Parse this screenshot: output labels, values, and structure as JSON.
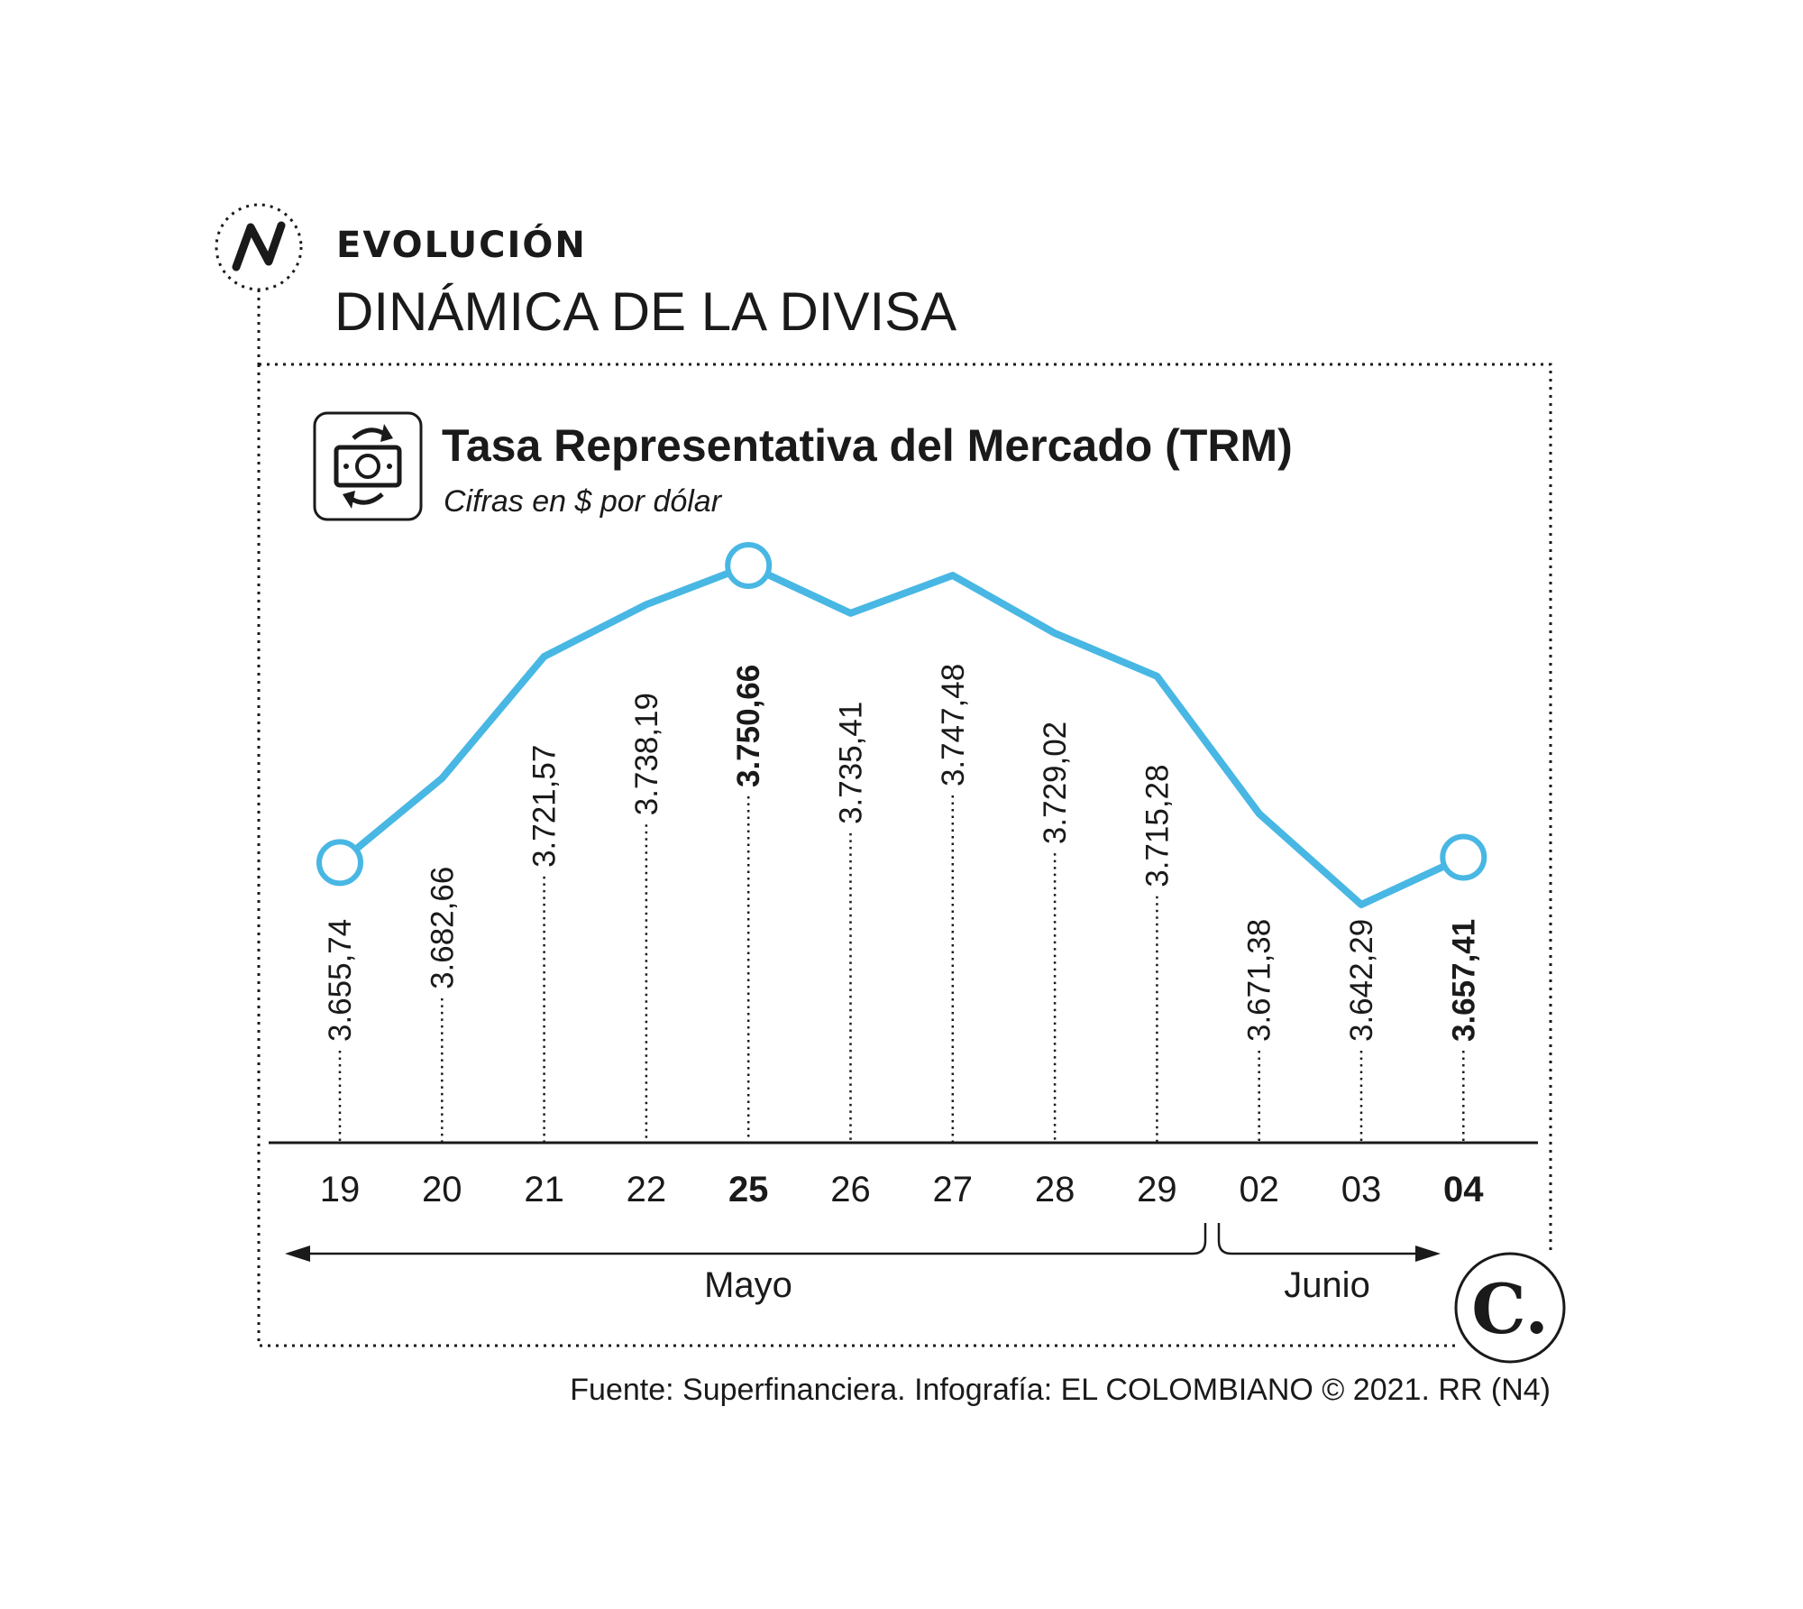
{
  "header": {
    "kicker": "EVOLUCIÓN",
    "headline": "DINÁMICA DE LA DIVISA",
    "icon": "trend-line-icon"
  },
  "chart_data": {
    "type": "line",
    "title": "Tasa Representativa del Mercado (TRM)",
    "subtitle": "Cifras en $ por dólar",
    "title_icon": "currency-exchange-icon",
    "categories": [
      "19",
      "20",
      "21",
      "22",
      "25",
      "26",
      "27",
      "28",
      "29",
      "02",
      "03",
      "04"
    ],
    "values": [
      3655.74,
      3682.66,
      3721.57,
      3738.19,
      3750.66,
      3735.41,
      3747.48,
      3729.02,
      3715.28,
      3671.38,
      3642.29,
      3657.41
    ],
    "value_labels": [
      "3.655,74",
      "3.682,66",
      "3.721,57",
      "3.738,19",
      "3.750,66",
      "3.735,41",
      "3.747,48",
      "3.729,02",
      "3.715,28",
      "3.671,38",
      "3.642,29",
      "3.657,41"
    ],
    "highlighted": [
      0,
      4,
      11
    ],
    "bold_labels": [
      4,
      11
    ],
    "months": [
      {
        "label": "Mayo",
        "from": 0,
        "to": 8
      },
      {
        "label": "Junio",
        "from": 9,
        "to": 11
      }
    ],
    "line_color": "#48b7e3",
    "ylim": [
      3642.29,
      3750.66
    ],
    "grid": false,
    "legend": "none"
  },
  "footer": {
    "source": "Fuente: Superfinanciera. Infografía: EL COLOMBIANO © 2021. RR (N4)",
    "logo_text": "C.",
    "logo": "el-colombiano-logo"
  }
}
